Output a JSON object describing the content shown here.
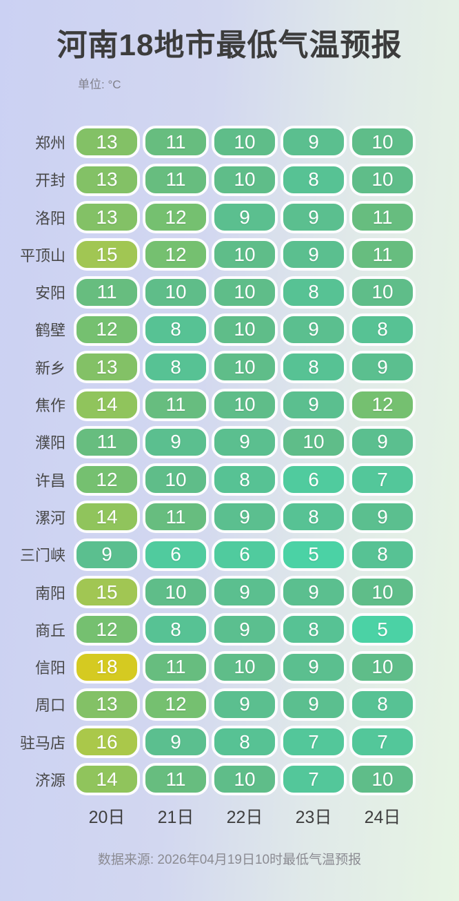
{
  "page": {
    "title": "河南18地市最低气温预报",
    "unit_label": "单位: °C",
    "source_note": "数据来源: 2026年04月19日10时最低气温预报"
  },
  "colors": {
    "background_left": "#cbd1f3",
    "background_right": "#e7f5e3",
    "title_text": "#3c3c3c",
    "unit_text": "#80808a",
    "row_label_text": "#474747",
    "column_header_text": "#3f3f3f",
    "cell_text": "#ffffff",
    "cell_border": "#fdfdff",
    "temperature_scale": {
      "5": "#4bd2a5",
      "6": "#50cb9e",
      "7": "#53c79a",
      "8": "#57c294",
      "9": "#5bbf8f",
      "10": "#5fbd89",
      "11": "#67bd7f",
      "12": "#75c070",
      "13": "#83c166",
      "14": "#90c45c",
      "15": "#a1c653",
      "16": "#aac84a",
      "18": "#d5ca21"
    }
  },
  "chart_data": {
    "type": "heatmap",
    "title": "河南18地市最低气温预报",
    "unit": "°C",
    "columns": [
      "20日",
      "21日",
      "22日",
      "23日",
      "24日"
    ],
    "rows": [
      {
        "label": "郑州",
        "values": [
          13,
          11,
          10,
          9,
          10
        ]
      },
      {
        "label": "开封",
        "values": [
          13,
          11,
          10,
          8,
          10
        ]
      },
      {
        "label": "洛阳",
        "values": [
          13,
          12,
          9,
          9,
          11
        ]
      },
      {
        "label": "平顶山",
        "values": [
          15,
          12,
          10,
          9,
          11
        ]
      },
      {
        "label": "安阳",
        "values": [
          11,
          10,
          10,
          8,
          10
        ]
      },
      {
        "label": "鹤壁",
        "values": [
          12,
          8,
          10,
          9,
          8
        ]
      },
      {
        "label": "新乡",
        "values": [
          13,
          8,
          10,
          8,
          9
        ]
      },
      {
        "label": "焦作",
        "values": [
          14,
          11,
          10,
          9,
          12
        ]
      },
      {
        "label": "濮阳",
        "values": [
          11,
          9,
          9,
          10,
          9
        ]
      },
      {
        "label": "许昌",
        "values": [
          12,
          10,
          8,
          6,
          7
        ]
      },
      {
        "label": "漯河",
        "values": [
          14,
          11,
          9,
          8,
          9
        ]
      },
      {
        "label": "三门峡",
        "values": [
          9,
          6,
          6,
          5,
          8
        ]
      },
      {
        "label": "南阳",
        "values": [
          15,
          10,
          9,
          9,
          10
        ]
      },
      {
        "label": "商丘",
        "values": [
          12,
          8,
          9,
          8,
          5
        ]
      },
      {
        "label": "信阳",
        "values": [
          18,
          11,
          10,
          9,
          10
        ]
      },
      {
        "label": "周口",
        "values": [
          13,
          12,
          9,
          9,
          8
        ]
      },
      {
        "label": "驻马店",
        "values": [
          16,
          9,
          8,
          7,
          7
        ]
      },
      {
        "label": "济源",
        "values": [
          14,
          11,
          10,
          7,
          10
        ]
      }
    ],
    "value_range": [
      5,
      18
    ],
    "source": "数据来源: 2026年04月19日10时最低气温预报"
  }
}
